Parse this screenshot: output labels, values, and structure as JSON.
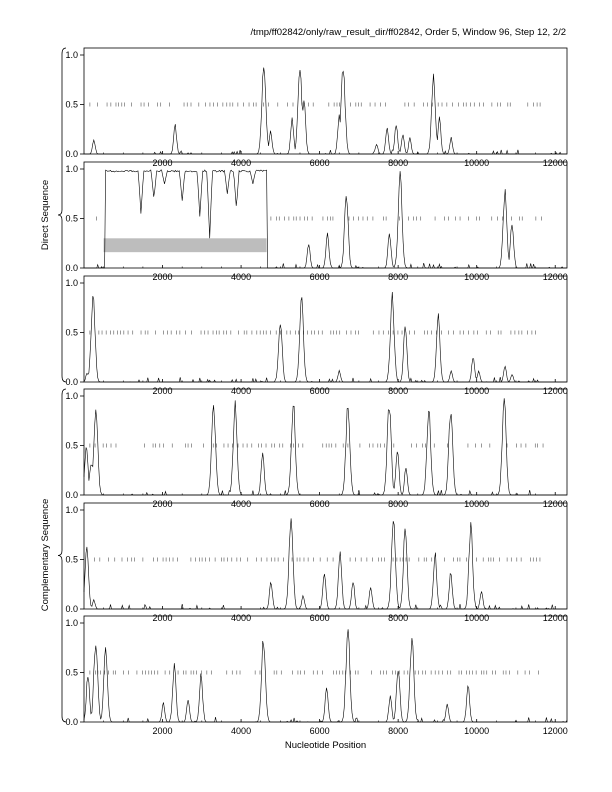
{
  "title": "/tmp/ff02842/only/raw_result_dir/ff02842, Order 5, Window 96, Step 12, 2/2",
  "xlabel": "Nucleotide Position",
  "group_labels": {
    "direct": "Direct Sequence",
    "complementary": "Complementary Sequence"
  },
  "colors": {
    "line": "#000000",
    "frame": "#000000",
    "highlight": "#bdbdbd",
    "dots": "#555555"
  },
  "chart_data": [
    {
      "type": "line",
      "panel": "Direct frame 1",
      "xlim": [
        0,
        12300
      ],
      "ylim": [
        0,
        1
      ],
      "xticks": [
        "2000",
        "4000",
        "6000",
        "8000",
        "10000",
        "12000"
      ],
      "yticks": [
        "0.0",
        "0.5",
        "1.0"
      ],
      "threshold_dots_y": 0.5,
      "peaks": [
        [
          250,
          0.16
        ],
        [
          2320,
          0.31
        ],
        [
          4580,
          0.99
        ],
        [
          4750,
          0.25
        ],
        [
          5300,
          0.37
        ],
        [
          5500,
          0.97
        ],
        [
          5600,
          0.6
        ],
        [
          6500,
          0.42
        ],
        [
          6600,
          0.96
        ],
        [
          7450,
          0.11
        ],
        [
          7720,
          0.29
        ],
        [
          7950,
          0.32
        ],
        [
          8120,
          0.22
        ],
        [
          8300,
          0.17
        ],
        [
          8900,
          0.82
        ],
        [
          9050,
          0.38
        ],
        [
          9350,
          0.18
        ]
      ]
    },
    {
      "type": "line",
      "panel": "Direct frame 2",
      "xlim": [
        0,
        12300
      ],
      "ylim": [
        0,
        1
      ],
      "xticks": [
        "2000",
        "4000",
        "6000",
        "8000",
        "10000",
        "12000"
      ],
      "yticks": [
        "0.0",
        "0.5",
        "1.0"
      ],
      "threshold_dots_y": 0.5,
      "highlight": {
        "x": [
          500,
          4650
        ],
        "y": [
          0.16,
          0.3
        ]
      },
      "plateau": [
        550,
        4650
      ],
      "plateau_dips": [
        [
          1450,
          0.55
        ],
        [
          1780,
          0.7
        ],
        [
          2050,
          0.85
        ],
        [
          2500,
          0.68
        ],
        [
          2950,
          0.52
        ],
        [
          3200,
          0.3
        ],
        [
          3650,
          0.75
        ],
        [
          3880,
          0.6
        ],
        [
          4300,
          0.85
        ]
      ],
      "peaks": [
        [
          5720,
          0.27
        ],
        [
          6200,
          0.36
        ],
        [
          6680,
          0.8
        ],
        [
          7780,
          0.38
        ],
        [
          8050,
          0.98
        ],
        [
          10720,
          0.84
        ],
        [
          10900,
          0.5
        ]
      ]
    },
    {
      "type": "line",
      "panel": "Direct frame 3",
      "xlim": [
        0,
        12300
      ],
      "ylim": [
        0,
        1
      ],
      "xticks": [
        "2000",
        "4000",
        "6000",
        "8000",
        "10000",
        "12000"
      ],
      "yticks": [
        "0.0",
        "0.5",
        "1.0"
      ],
      "threshold_dots_y": 0.5,
      "peaks": [
        [
          80,
          0.1
        ],
        [
          230,
          0.96
        ],
        [
          5000,
          0.68
        ],
        [
          5540,
          0.91
        ],
        [
          6500,
          0.12
        ],
        [
          7850,
          0.92
        ],
        [
          8180,
          0.58
        ],
        [
          9020,
          0.7
        ],
        [
          9350,
          0.12
        ],
        [
          9910,
          0.28
        ],
        [
          10050,
          0.12
        ],
        [
          10720,
          0.18
        ],
        [
          10900,
          0.08
        ]
      ]
    },
    {
      "type": "line",
      "panel": "Complementary frame 1",
      "xlim": [
        0,
        12300
      ],
      "ylim": [
        0,
        1
      ],
      "xticks": [
        "2000",
        "4000",
        "6000",
        "8000",
        "10000",
        "12000"
      ],
      "yticks": [
        "0.0",
        "0.5",
        "1.0"
      ],
      "threshold_dots_y": 0.5,
      "peaks": [
        [
          60,
          0.55
        ],
        [
          180,
          0.35
        ],
        [
          300,
          0.96
        ],
        [
          3300,
          0.98
        ],
        [
          3850,
          0.96
        ],
        [
          4550,
          0.45
        ],
        [
          5330,
          0.98
        ],
        [
          6720,
          0.98
        ],
        [
          7770,
          0.98
        ],
        [
          7980,
          0.5
        ],
        [
          8200,
          0.3
        ],
        [
          8780,
          0.95
        ],
        [
          9340,
          0.95
        ],
        [
          10700,
          1.0
        ]
      ]
    },
    {
      "type": "line",
      "panel": "Complementary frame 2",
      "xlim": [
        0,
        12300
      ],
      "ylim": [
        0,
        1
      ],
      "xticks": [
        "2000",
        "4000",
        "6000",
        "8000",
        "10000",
        "12000"
      ],
      "yticks": [
        "0.0",
        "0.5",
        "1.0"
      ],
      "threshold_dots_y": 0.5,
      "peaks": [
        [
          70,
          0.7
        ],
        [
          250,
          0.1
        ],
        [
          4760,
          0.3
        ],
        [
          5270,
          0.98
        ],
        [
          5580,
          0.15
        ],
        [
          6120,
          0.4
        ],
        [
          6520,
          0.6
        ],
        [
          6850,
          0.3
        ],
        [
          7300,
          0.25
        ],
        [
          7880,
          0.97
        ],
        [
          8180,
          0.85
        ],
        [
          8940,
          0.6
        ],
        [
          9340,
          0.4
        ],
        [
          9850,
          0.88
        ],
        [
          10120,
          0.2
        ]
      ]
    },
    {
      "type": "line",
      "panel": "Complementary frame 3",
      "xlim": [
        0,
        12300
      ],
      "ylim": [
        0,
        1
      ],
      "xticks": [
        "2000",
        "4000",
        "6000",
        "8000",
        "10000",
        "12000"
      ],
      "yticks": [
        "0.0",
        "0.5",
        "1.0"
      ],
      "threshold_dots_y": 0.5,
      "peaks": [
        [
          100,
          0.5
        ],
        [
          300,
          0.9
        ],
        [
          550,
          0.8
        ],
        [
          2020,
          0.2
        ],
        [
          2300,
          0.6
        ],
        [
          2650,
          0.25
        ],
        [
          2980,
          0.5
        ],
        [
          4570,
          0.9
        ],
        [
          6180,
          0.38
        ],
        [
          6720,
          0.98
        ],
        [
          7800,
          0.28
        ],
        [
          8000,
          0.6
        ],
        [
          8350,
          0.9
        ],
        [
          9250,
          0.2
        ],
        [
          9780,
          0.4
        ]
      ]
    }
  ]
}
